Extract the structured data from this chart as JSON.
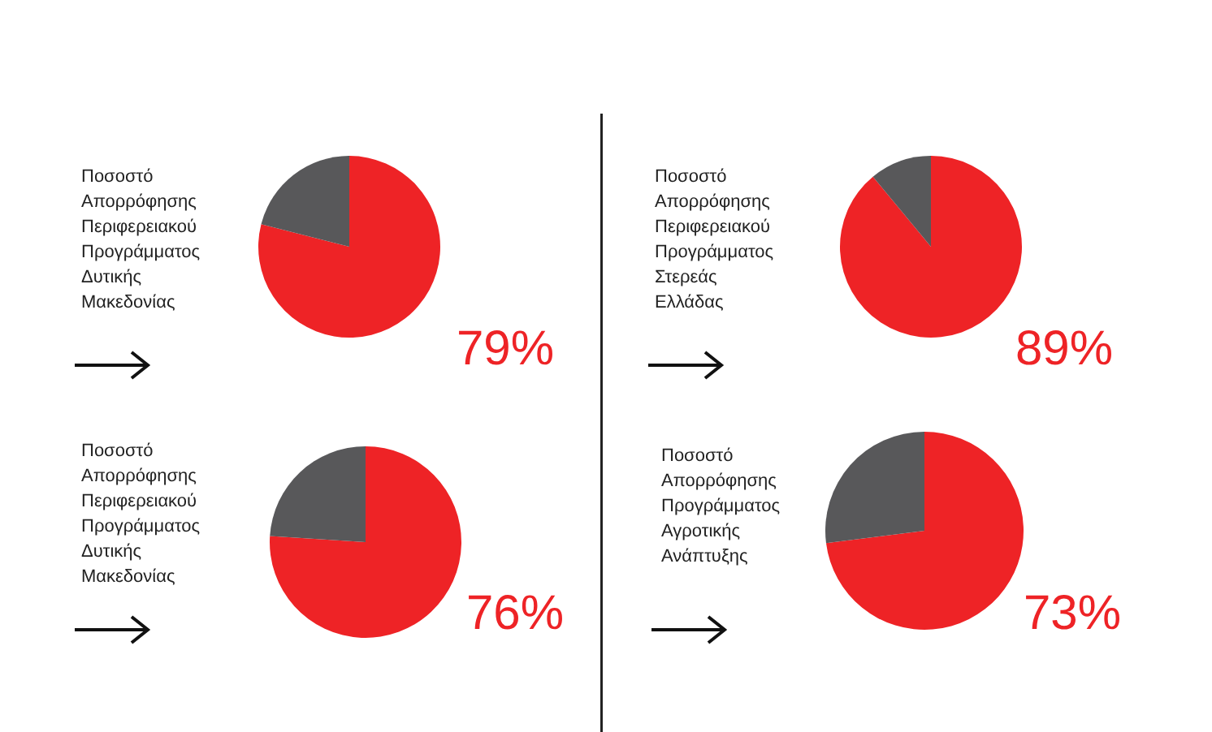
{
  "chart_data": [
    {
      "type": "pie",
      "title": "Ποσοστό\nΑπορρόφησης\nΠεριφερειακού\nΠρογράμματος\nΔυτικής\nΜακεδονίας",
      "categories": [
        null,
        null
      ],
      "values": [
        79,
        21
      ],
      "colors": [
        "#ee2326",
        "#58585a"
      ],
      "value_labels": [
        "79%",
        null
      ]
    },
    {
      "type": "pie",
      "title": "Ποσοστό\nΑπορρόφησης\nΠεριφερειακού\nΠρογράμματος\nΣτερεάς\nΕλλάδας",
      "categories": [
        null,
        null
      ],
      "values": [
        89,
        11
      ],
      "colors": [
        "#ee2326",
        "#58585a"
      ],
      "value_labels": [
        "89%",
        null
      ]
    },
    {
      "type": "pie",
      "title": "Ποσοστό\nΑπορρόφησης\nΠεριφερειακού\nΠρογράμματος\nΔυτικής\nΜακεδονίας",
      "categories": [
        null,
        null
      ],
      "values": [
        76,
        24
      ],
      "colors": [
        "#ee2326",
        "#58585a"
      ],
      "value_labels": [
        "76%",
        null
      ]
    },
    {
      "type": "pie",
      "title": "Ποσοστό\nΑπορρόφησης\nΠρογράμματος\nΑγροτικής\nΑνάπτυξης",
      "categories": [
        null,
        null
      ],
      "values": [
        73,
        27
      ],
      "colors": [
        "#ee2326",
        "#58585a"
      ],
      "value_labels": [
        "73%",
        null
      ]
    }
  ]
}
